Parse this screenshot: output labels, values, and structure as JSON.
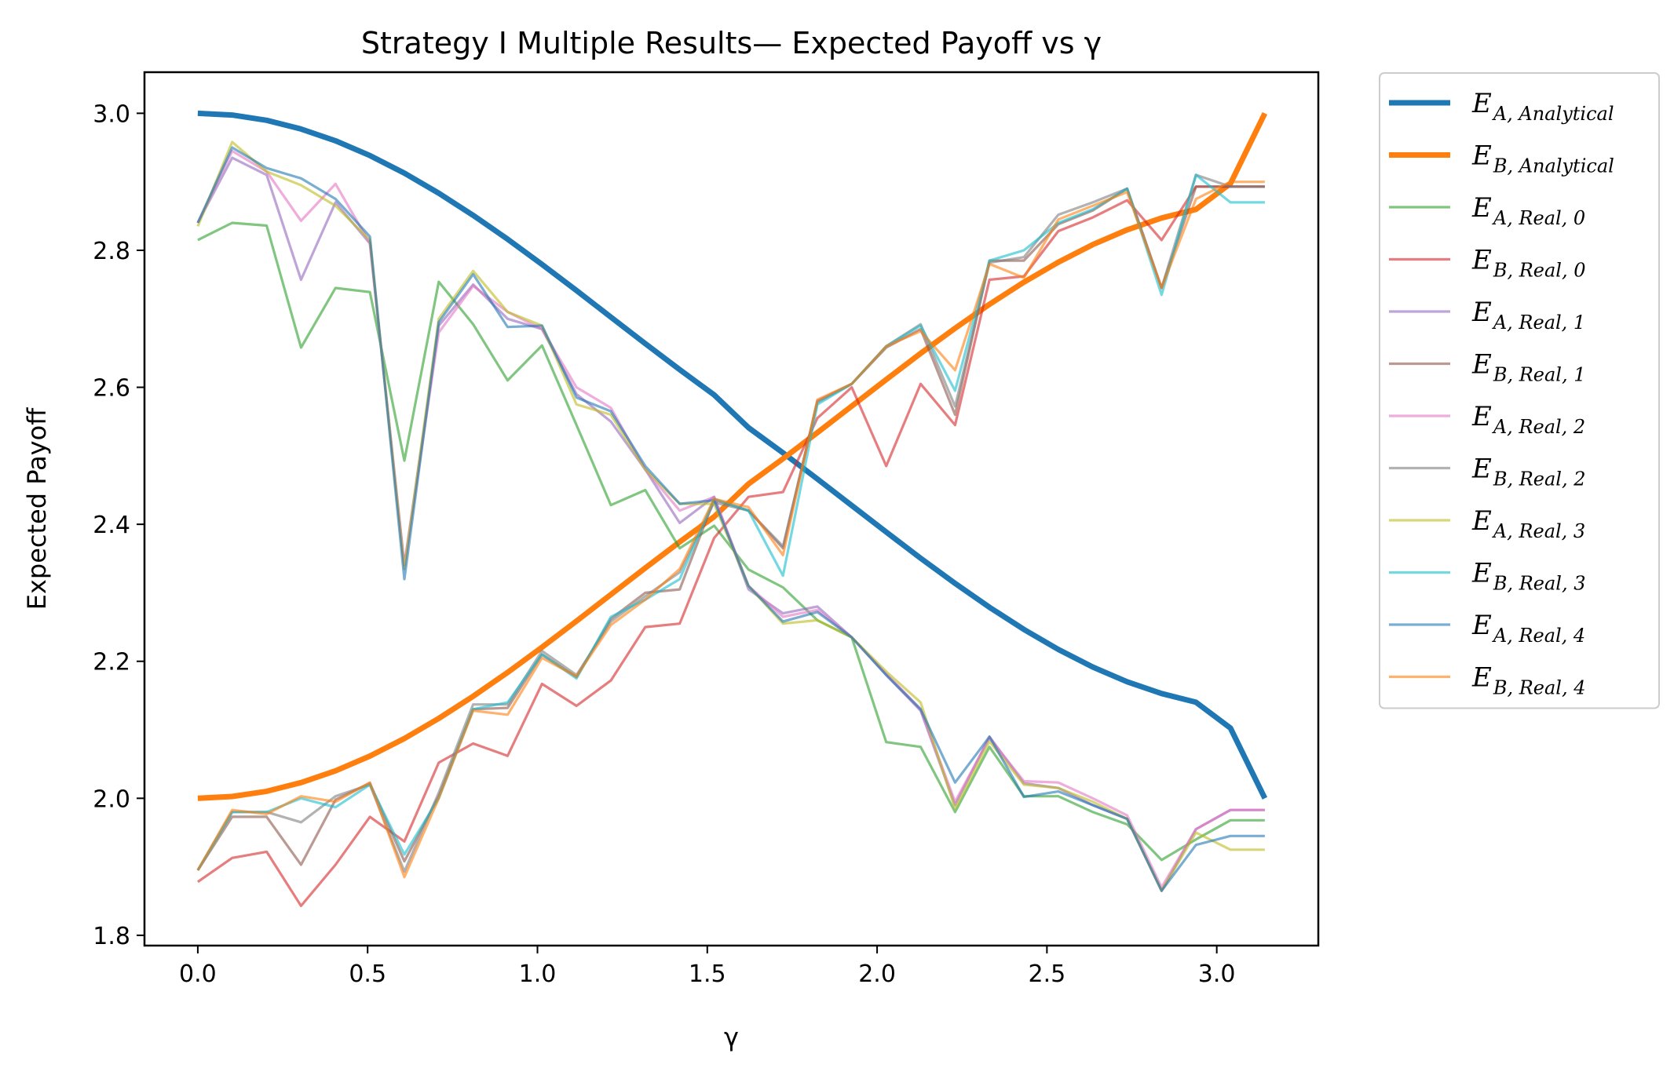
{
  "chart_data": {
    "type": "line",
    "title": "Strategy I Multiple Results— Expected Payoff vs γ",
    "xlabel": "γ",
    "ylabel": "Expected Payoff",
    "xlim": [
      -0.157,
      3.299
    ],
    "ylim": [
      1.785,
      3.06
    ],
    "xticks": [
      "0.0",
      "0.5",
      "1.0",
      "1.5",
      "2.0",
      "2.5",
      "3.0"
    ],
    "xtick_values": [
      0,
      0.5,
      1.0,
      1.5,
      2.0,
      2.5,
      3.0
    ],
    "yticks": [
      "1.8",
      "2.0",
      "2.2",
      "2.4",
      "2.6",
      "2.8",
      "3.0"
    ],
    "ytick_values": [
      1.8,
      2.0,
      2.2,
      2.4,
      2.6,
      2.8,
      3.0
    ],
    "grid": false,
    "legend_position": "outside-right",
    "x": [
      0.0,
      0.1013,
      0.2027,
      0.304,
      0.4054,
      0.5067,
      0.6081,
      0.7094,
      0.8107,
      0.9121,
      1.0134,
      1.1148,
      1.2161,
      1.3175,
      1.4188,
      1.5201,
      1.6215,
      1.7228,
      1.8242,
      1.9255,
      2.0268,
      2.1282,
      2.2295,
      2.3309,
      2.4322,
      2.5336,
      2.6349,
      2.7362,
      2.8376,
      2.9389,
      3.0403,
      3.1416
    ],
    "series": [
      {
        "name": "E",
        "sub": "A, Analytical",
        "color": "#1f77b4",
        "width": 7,
        "opacity": 1,
        "values": [
          3.0,
          2.9974,
          2.9898,
          2.9771,
          2.9599,
          2.9383,
          2.9127,
          2.8834,
          2.8511,
          2.8162,
          2.7795,
          2.7413,
          2.7025,
          2.6638,
          2.6257,
          2.5889,
          2.5411,
          2.5043,
          2.4662,
          2.4274,
          2.3887,
          2.3505,
          2.3138,
          2.2789,
          2.2466,
          2.2173,
          2.1917,
          2.1701,
          2.1529,
          2.1402,
          2.1026,
          2.0
        ]
      },
      {
        "name": "E",
        "sub": "B, Analytical",
        "color": "#ff7f0e",
        "width": 7,
        "opacity": 1,
        "values": [
          2.0,
          2.0026,
          2.0102,
          2.0229,
          2.0401,
          2.0617,
          2.0873,
          2.1166,
          2.1489,
          2.1838,
          2.2205,
          2.2587,
          2.2975,
          2.3362,
          2.3743,
          2.4111,
          2.4589,
          2.4957,
          2.5338,
          2.5726,
          2.6113,
          2.6495,
          2.6862,
          2.7211,
          2.7534,
          2.7827,
          2.8083,
          2.8299,
          2.8471,
          2.8598,
          2.8974,
          3.0
        ]
      },
      {
        "name": "E",
        "sub": "A, Real, 0",
        "color": "#2ca02c",
        "width": 3.2,
        "opacity": 0.6,
        "values": [
          2.815,
          2.84,
          2.836,
          2.658,
          2.745,
          2.739,
          2.493,
          2.754,
          2.692,
          2.61,
          2.661,
          2.545,
          2.428,
          2.45,
          2.365,
          2.398,
          2.334,
          2.308,
          2.26,
          2.235,
          2.082,
          2.075,
          1.98,
          2.075,
          2.003,
          2.003,
          1.98,
          1.962,
          1.91,
          1.94,
          1.968,
          1.968
        ]
      },
      {
        "name": "E",
        "sub": "B, Real, 0",
        "color": "#d62728",
        "width": 3.2,
        "opacity": 0.6,
        "values": [
          1.878,
          1.913,
          1.922,
          1.843,
          1.903,
          1.973,
          1.937,
          2.052,
          2.08,
          2.062,
          2.167,
          2.135,
          2.172,
          2.25,
          2.255,
          2.38,
          2.44,
          2.447,
          2.555,
          2.6,
          2.485,
          2.605,
          2.545,
          2.757,
          2.762,
          2.828,
          2.848,
          2.873,
          2.815,
          2.893,
          2.893,
          2.893
        ]
      },
      {
        "name": "E",
        "sub": "A, Real, 1",
        "color": "#9467bd",
        "width": 3.2,
        "opacity": 0.6,
        "values": [
          2.84,
          2.935,
          2.91,
          2.757,
          2.87,
          2.81,
          2.34,
          2.69,
          2.75,
          2.7,
          2.685,
          2.59,
          2.55,
          2.48,
          2.402,
          2.44,
          2.305,
          2.27,
          2.28,
          2.235,
          2.18,
          2.128,
          1.99,
          2.09,
          2.022,
          2.015,
          1.99,
          1.97,
          1.865,
          1.955,
          1.983,
          1.983
        ]
      },
      {
        "name": "E",
        "sub": "B, Real, 1",
        "color": "#8c564b",
        "width": 3.2,
        "opacity": 0.6,
        "values": [
          1.895,
          1.973,
          1.973,
          1.903,
          1.998,
          2.022,
          1.908,
          2.003,
          2.13,
          2.132,
          2.21,
          2.177,
          2.262,
          2.3,
          2.305,
          2.436,
          2.42,
          2.365,
          2.58,
          2.605,
          2.658,
          2.685,
          2.56,
          2.785,
          2.785,
          2.838,
          2.858,
          2.89,
          2.745,
          2.893,
          2.893,
          2.893
        ]
      },
      {
        "name": "E",
        "sub": "A, Real, 2",
        "color": "#e377c2",
        "width": 3.2,
        "opacity": 0.6,
        "values": [
          2.84,
          2.945,
          2.915,
          2.843,
          2.897,
          2.81,
          2.34,
          2.68,
          2.748,
          2.71,
          2.685,
          2.6,
          2.57,
          2.48,
          2.42,
          2.44,
          2.31,
          2.265,
          2.275,
          2.235,
          2.182,
          2.13,
          1.995,
          2.088,
          2.025,
          2.023,
          2.0,
          1.975,
          1.87,
          1.955,
          1.983,
          1.983
        ]
      },
      {
        "name": "E",
        "sub": "B, Real, 2",
        "color": "#7f7f7f",
        "width": 3.2,
        "opacity": 0.6,
        "values": [
          1.895,
          1.98,
          1.98,
          1.965,
          2.003,
          2.02,
          1.893,
          2.008,
          2.137,
          2.137,
          2.215,
          2.18,
          2.258,
          2.295,
          2.33,
          2.432,
          2.42,
          2.368,
          2.578,
          2.605,
          2.66,
          2.692,
          2.572,
          2.782,
          2.79,
          2.852,
          2.87,
          2.89,
          2.745,
          2.91,
          2.893,
          2.893
        ]
      },
      {
        "name": "E",
        "sub": "A, Real, 3",
        "color": "#bcbd22",
        "width": 3.2,
        "opacity": 0.6,
        "values": [
          2.835,
          2.958,
          2.915,
          2.895,
          2.865,
          2.815,
          2.335,
          2.7,
          2.77,
          2.71,
          2.69,
          2.575,
          2.56,
          2.48,
          2.43,
          2.43,
          2.31,
          2.255,
          2.26,
          2.235,
          2.185,
          2.14,
          1.985,
          2.083,
          2.02,
          2.015,
          1.995,
          1.97,
          1.865,
          1.95,
          1.925,
          1.925
        ]
      },
      {
        "name": "E",
        "sub": "B, Real, 3",
        "color": "#17becf",
        "width": 3.2,
        "opacity": 0.6,
        "values": [
          1.895,
          1.98,
          1.98,
          2.0,
          1.987,
          2.02,
          1.918,
          2.0,
          2.13,
          2.14,
          2.21,
          2.175,
          2.265,
          2.29,
          2.32,
          2.437,
          2.42,
          2.325,
          2.575,
          2.605,
          2.66,
          2.69,
          2.595,
          2.785,
          2.8,
          2.84,
          2.86,
          2.89,
          2.735,
          2.91,
          2.87,
          2.87
        ]
      },
      {
        "name": "E",
        "sub": "A, Real, 4",
        "color": "#1f77b4",
        "width": 3.2,
        "opacity": 0.6,
        "values": [
          2.84,
          2.95,
          2.92,
          2.905,
          2.875,
          2.82,
          2.32,
          2.695,
          2.765,
          2.688,
          2.69,
          2.585,
          2.565,
          2.485,
          2.43,
          2.435,
          2.31,
          2.258,
          2.272,
          2.235,
          2.18,
          2.13,
          2.023,
          2.09,
          2.002,
          2.01,
          1.99,
          1.97,
          1.865,
          1.932,
          1.945,
          1.945
        ]
      },
      {
        "name": "E",
        "sub": "B, Real, 4",
        "color": "#ff7f0e",
        "width": 3.2,
        "opacity": 0.6,
        "values": [
          1.895,
          1.983,
          1.977,
          2.003,
          1.995,
          2.023,
          1.885,
          2.0,
          2.128,
          2.122,
          2.205,
          2.178,
          2.253,
          2.29,
          2.335,
          2.437,
          2.425,
          2.355,
          2.582,
          2.605,
          2.66,
          2.682,
          2.625,
          2.78,
          2.76,
          2.845,
          2.865,
          2.885,
          2.745,
          2.875,
          2.9,
          2.9
        ]
      }
    ]
  }
}
